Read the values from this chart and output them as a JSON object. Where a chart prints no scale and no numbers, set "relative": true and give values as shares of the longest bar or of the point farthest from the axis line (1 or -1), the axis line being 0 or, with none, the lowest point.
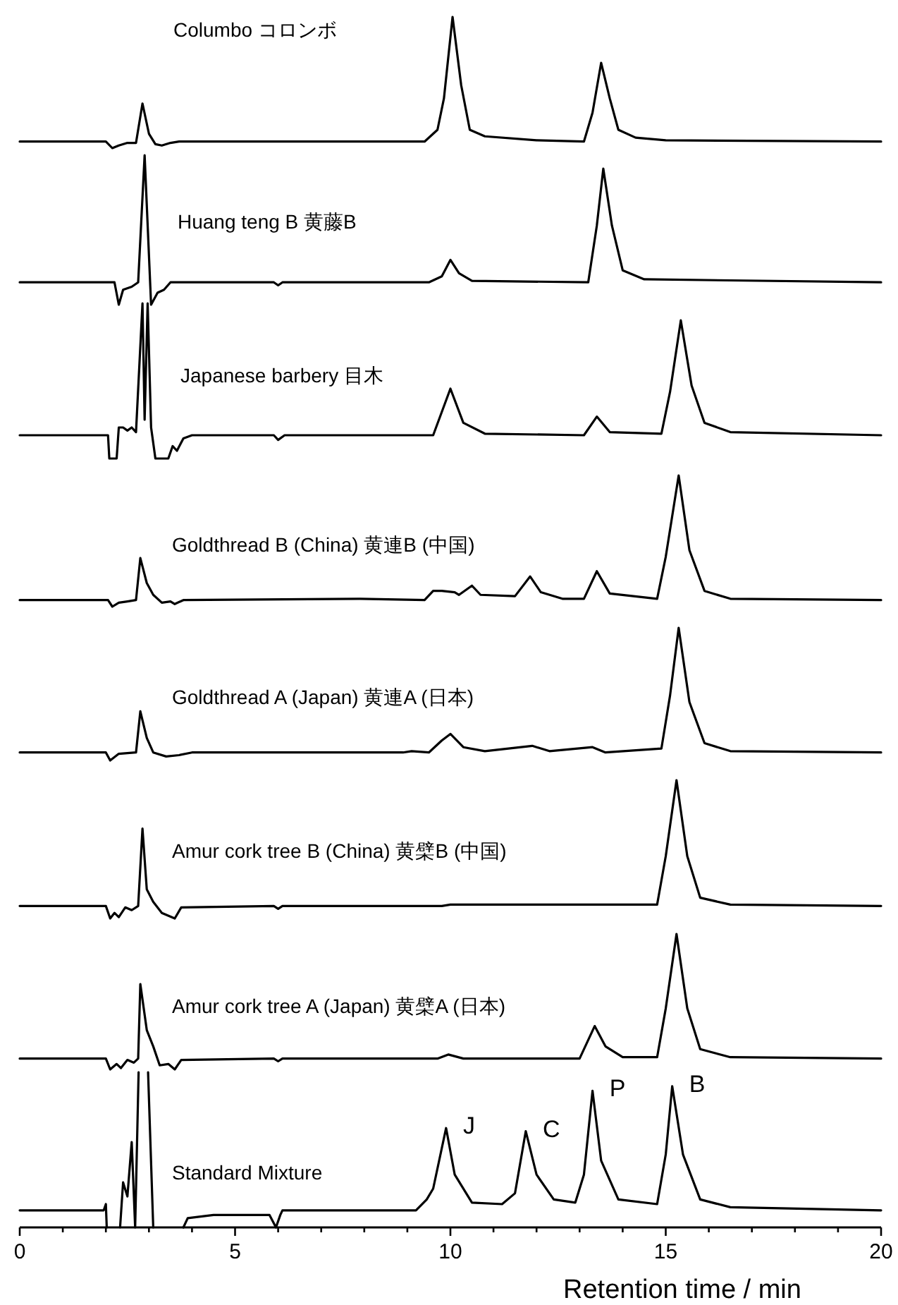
{
  "chart_data": [
    {
      "type": "line",
      "relative": true,
      "xlim": [
        0,
        20
      ],
      "tick_labels": false,
      "series": [
        {
          "name": "Columbo コロンボ",
          "color": "#000000",
          "x": [
            0,
            2.0,
            2.15,
            2.3,
            2.5,
            2.7,
            2.85,
            3.0,
            3.15,
            3.3,
            3.5,
            3.7,
            9.4,
            9.7,
            9.85,
            10.05,
            10.25,
            10.45,
            10.8,
            12,
            13.1,
            13.3,
            13.5,
            13.7,
            13.9,
            14.3,
            15,
            20
          ],
          "values": [
            0.05,
            0.05,
            0,
            0.02,
            0.04,
            0.04,
            0.34,
            0.11,
            0.03,
            0.02,
            0.04,
            0.05,
            0.05,
            0.14,
            0.38,
            1,
            0.48,
            0.14,
            0.09,
            0.06,
            0.05,
            0.27,
            0.65,
            0.38,
            0.14,
            0.08,
            0.06,
            0.05
          ]
        }
      ]
    },
    {
      "type": "line",
      "relative": true,
      "xlim": [
        0,
        20
      ],
      "tick_labels": false,
      "series": [
        {
          "name": "Huang teng B 黄藤B",
          "color": "#000000",
          "x": [
            0,
            2.2,
            2.3,
            2.4,
            2.6,
            2.75,
            2.9,
            3.05,
            3.2,
            3.35,
            3.5,
            5.9,
            6.0,
            6.1,
            9.5,
            9.8,
            10.0,
            10.2,
            10.5,
            13.2,
            13.4,
            13.55,
            13.75,
            14.0,
            14.5,
            20
          ],
          "values": [
            0.15,
            0.15,
            0,
            0.1,
            0.12,
            0.15,
            1,
            0,
            0.08,
            0.1,
            0.15,
            0.15,
            0.13,
            0.15,
            0.15,
            0.19,
            0.3,
            0.21,
            0.16,
            0.15,
            0.53,
            0.91,
            0.53,
            0.23,
            0.17,
            0.15
          ]
        }
      ]
    },
    {
      "type": "line",
      "relative": true,
      "xlim": [
        0,
        20
      ],
      "tick_labels": false,
      "series": [
        {
          "name": "Japanese barbery 目木",
          "color": "#000000",
          "x": [
            0,
            2.05,
            2.08,
            2.25,
            2.3,
            2.4,
            2.5,
            2.6,
            2.7,
            2.85,
            2.9,
            2.97,
            3.05,
            3.15,
            3.45,
            3.55,
            3.65,
            3.8,
            4.0,
            5.9,
            6.0,
            6.15,
            9.6,
            10.0,
            10.3,
            10.8,
            13.1,
            13.4,
            13.7,
            14.9,
            15.1,
            15.35,
            15.6,
            15.9,
            16.5,
            20
          ],
          "values": [
            0.15,
            0.15,
            0,
            0,
            0.2,
            0.2,
            0.18,
            0.2,
            0.17,
            1,
            0.25,
            1,
            0.2,
            0,
            0,
            0.08,
            0.05,
            0.13,
            0.15,
            0.15,
            0.12,
            0.15,
            0.15,
            0.45,
            0.23,
            0.16,
            0.15,
            0.27,
            0.17,
            0.16,
            0.43,
            0.89,
            0.47,
            0.23,
            0.17,
            0.15
          ]
        }
      ]
    },
    {
      "type": "line",
      "relative": true,
      "xlim": [
        0,
        20
      ],
      "tick_labels": false,
      "series": [
        {
          "name": "Goldthread B (China) 黄連B (中国)",
          "color": "#000000",
          "x": [
            0,
            2.05,
            2.15,
            2.3,
            2.5,
            2.7,
            2.8,
            2.95,
            3.1,
            3.3,
            3.5,
            3.6,
            3.8,
            7.9,
            9.4,
            9.6,
            9.8,
            10.1,
            10.2,
            10.5,
            10.7,
            11.5,
            11.85,
            12.1,
            12.6,
            13.1,
            13.4,
            13.7,
            14.8,
            15.0,
            15.3,
            15.55,
            15.9,
            16.5,
            20
          ],
          "values": [
            0.05,
            0.05,
            0,
            0.03,
            0.04,
            0.05,
            0.37,
            0.18,
            0.09,
            0.03,
            0.04,
            0.02,
            0.05,
            0.06,
            0.05,
            0.12,
            0.12,
            0.11,
            0.09,
            0.16,
            0.09,
            0.08,
            0.23,
            0.11,
            0.06,
            0.06,
            0.27,
            0.1,
            0.06,
            0.38,
            1,
            0.43,
            0.12,
            0.06,
            0.05
          ]
        }
      ]
    },
    {
      "type": "line",
      "relative": true,
      "xlim": [
        0,
        20
      ],
      "tick_labels": false,
      "series": [
        {
          "name": "Goldthread A (Japan) 黄連A (日本)",
          "color": "#000000",
          "x": [
            0,
            2.0,
            2.1,
            2.3,
            2.7,
            2.8,
            2.95,
            3.1,
            3.4,
            3.7,
            4.0,
            8.9,
            9.1,
            9.5,
            9.8,
            10.0,
            10.3,
            10.8,
            11.9,
            12.3,
            13.3,
            13.6,
            14.9,
            15.1,
            15.3,
            15.55,
            15.9,
            16.5,
            20
          ],
          "values": [
            0.06,
            0.06,
            0,
            0.05,
            0.06,
            0.37,
            0.17,
            0.06,
            0.03,
            0.04,
            0.06,
            0.06,
            0.07,
            0.06,
            0.15,
            0.2,
            0.1,
            0.07,
            0.11,
            0.07,
            0.1,
            0.06,
            0.09,
            0.49,
            1,
            0.44,
            0.13,
            0.07,
            0.06
          ]
        }
      ]
    },
    {
      "type": "line",
      "relative": true,
      "xlim": [
        0,
        20
      ],
      "tick_labels": false,
      "series": [
        {
          "name": "Amur cork tree B (China) 黄檗B (中国)",
          "color": "#000000",
          "x": [
            0,
            2.0,
            2.1,
            2.2,
            2.3,
            2.45,
            2.6,
            2.75,
            2.85,
            2.95,
            3.1,
            3.3,
            3.6,
            3.75,
            5.9,
            6.0,
            6.1,
            9.8,
            10.0,
            14.8,
            15.0,
            15.25,
            15.5,
            15.8,
            16.5,
            20
          ],
          "values": [
            0.09,
            0.09,
            0,
            0.04,
            0.01,
            0.08,
            0.06,
            0.09,
            0.65,
            0.21,
            0.12,
            0.04,
            0,
            0.08,
            0.09,
            0.07,
            0.09,
            0.09,
            0.1,
            0.1,
            0.45,
            1,
            0.45,
            0.15,
            0.1,
            0.09
          ]
        }
      ]
    },
    {
      "type": "line",
      "relative": true,
      "xlim": [
        0,
        20
      ],
      "tick_labels": false,
      "series": [
        {
          "name": "Amur cork tree A (Japan) 黄檗A (日本)",
          "color": "#000000",
          "x": [
            0,
            2.0,
            2.1,
            2.25,
            2.35,
            2.5,
            2.65,
            2.75,
            2.8,
            2.95,
            3.1,
            3.25,
            3.45,
            3.6,
            3.75,
            5.9,
            6.0,
            6.1,
            9.7,
            9.95,
            10.3,
            13.0,
            13.35,
            13.6,
            14.0,
            14.8,
            15.0,
            15.25,
            15.5,
            15.8,
            16.5,
            20
          ],
          "values": [
            0.08,
            0.08,
            0,
            0.04,
            0.01,
            0.07,
            0.05,
            0.08,
            0.63,
            0.29,
            0.17,
            0.03,
            0.04,
            0,
            0.07,
            0.08,
            0.06,
            0.08,
            0.08,
            0.11,
            0.08,
            0.08,
            0.32,
            0.17,
            0.09,
            0.09,
            0.45,
            1,
            0.45,
            0.15,
            0.09,
            0.08
          ]
        }
      ]
    },
    {
      "type": "line",
      "relative": true,
      "xlim": [
        0,
        20
      ],
      "xticks": [
        0,
        {
          "value": 1,
          "label": null
        },
        {
          "value": 2,
          "label": null
        },
        {
          "value": 3,
          "label": null
        },
        {
          "value": 4,
          "label": null
        },
        5,
        {
          "value": 6,
          "label": null
        },
        {
          "value": 7,
          "label": null
        },
        {
          "value": 8,
          "label": null
        },
        {
          "value": 9,
          "label": null
        },
        10,
        {
          "value": 11,
          "label": null
        },
        {
          "value": 12,
          "label": null
        },
        {
          "value": 13,
          "label": null
        },
        {
          "value": 14,
          "label": null
        },
        15,
        {
          "value": 16,
          "label": null
        },
        {
          "value": 17,
          "label": null
        },
        {
          "value": 18,
          "label": null
        },
        {
          "value": 19,
          "label": null
        },
        20
      ],
      "xlabel": "Retention time / min",
      "tick_labels": "x",
      "annotations": [
        {
          "text": "J",
          "x": 9.9,
          "y": 0.64
        },
        {
          "text": "C",
          "x": 11.75,
          "y": 0.62
        },
        {
          "text": "P",
          "x": 13.3,
          "y": 0.88
        },
        {
          "text": "B",
          "x": 15.15,
          "y": 0.91
        }
      ],
      "series": [
        {
          "name": "Standard Mixture",
          "color": "#000000",
          "x": [
            0,
            1.95,
            2.0,
            2.02,
            2.3,
            2.33,
            2.4,
            2.5,
            2.6,
            2.68,
            2.76,
            2.8,
            2.95,
            2.98,
            3.1,
            3.5,
            3.8,
            3.9,
            4.5,
            5.8,
            5.95,
            6.05,
            6.1,
            9.2,
            9.45,
            9.6,
            9.9,
            10.1,
            10.5,
            11.2,
            11.5,
            11.75,
            12.0,
            12.4,
            12.9,
            13.1,
            13.3,
            13.5,
            13.9,
            14.8,
            15.0,
            15.15,
            15.4,
            15.8,
            16.5,
            20
          ],
          "values": [
            0.11,
            0.11,
            0.15,
            0,
            null,
            0,
            0.29,
            0.2,
            0.55,
            0,
            1,
            null,
            null,
            1,
            0,
            null,
            0,
            0.06,
            0.08,
            0.08,
            0,
            0.08,
            0.11,
            0.11,
            0.18,
            0.25,
            0.64,
            0.34,
            0.16,
            0.15,
            0.22,
            0.62,
            0.34,
            0.18,
            0.16,
            0.34,
            0.88,
            0.43,
            0.18,
            0.15,
            0.47,
            0.91,
            0.47,
            0.18,
            0.13,
            0.11
          ]
        }
      ]
    }
  ]
}
